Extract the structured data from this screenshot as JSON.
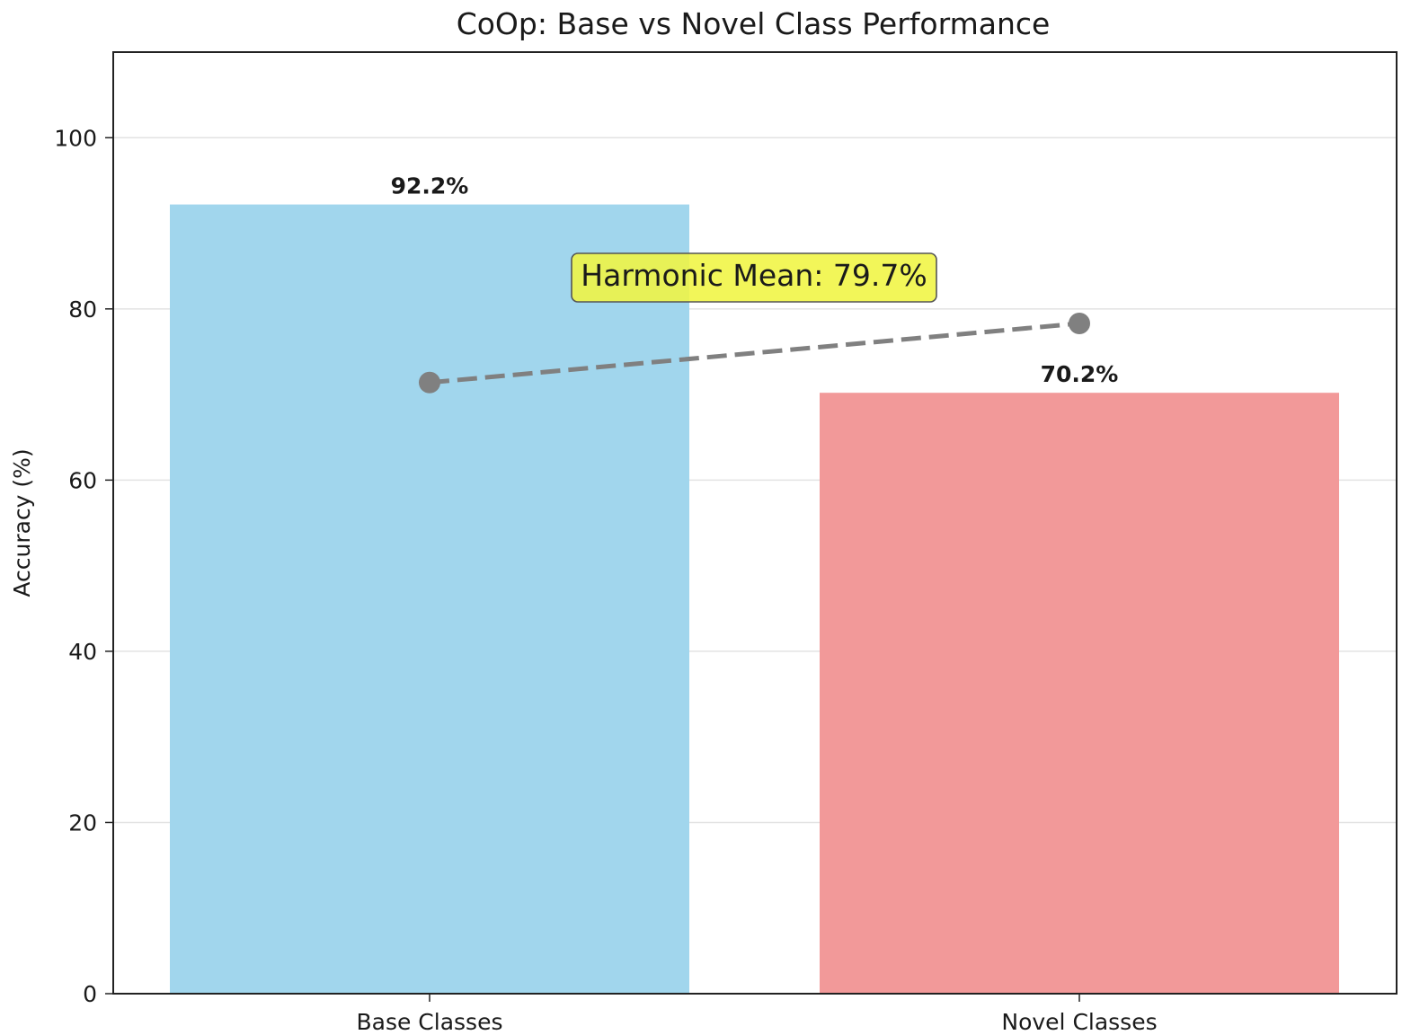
{
  "chart_data": {
    "type": "bar",
    "title": "CoOp: Base vs Novel Class Performance",
    "xlabel": "",
    "ylabel": "Accuracy (%)",
    "ylim": [
      0,
      110
    ],
    "yticks": [
      0,
      20,
      40,
      60,
      80,
      100
    ],
    "grid": "horizontal",
    "categories": [
      "Base Classes",
      "Novel Classes"
    ],
    "values": [
      92.2,
      70.2
    ],
    "value_labels": [
      "92.2%",
      "70.2%"
    ],
    "colors": [
      "#a1d6ed",
      "#f29999"
    ],
    "line": {
      "style": "dashed",
      "color": "#808080",
      "points": [
        {
          "x": "Base Classes",
          "y": 71.4
        },
        {
          "x": "Novel Classes",
          "y": 78.3
        }
      ]
    },
    "annotation": {
      "text": "Harmonic Mean: 79.7%",
      "value": 79.7,
      "background": "#f0f542"
    }
  }
}
